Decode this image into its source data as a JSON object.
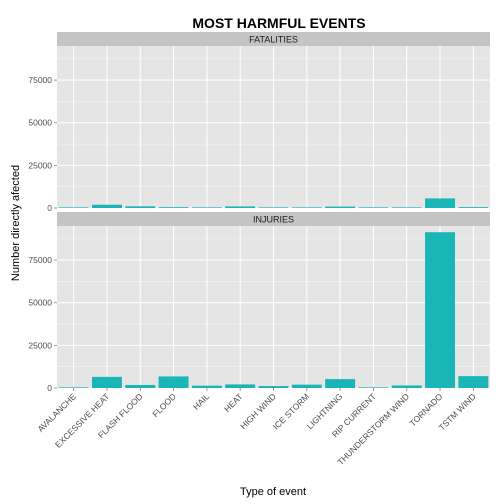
{
  "chart_data": {
    "type": "bar",
    "title": "MOST HARMFUL EVENTS",
    "xlabel": "Type of event",
    "ylabel": "Number directly afected",
    "ylim": [
      0,
      95000
    ],
    "yticks": [
      0,
      25000,
      50000,
      75000
    ],
    "ytick_labels": [
      "0",
      "25000",
      "50000",
      "75000"
    ],
    "grid": true,
    "bar_color": "#1ab5b7",
    "panel_background": "#e5e5e5",
    "strip_background": "#c4c4c4",
    "categories": [
      "AVALANCHE",
      "EXCESSIVE HEAT",
      "FLASH FLOOD",
      "FLOOD",
      "HAIL",
      "HEAT",
      "HIGH WIND",
      "ICE STORM",
      "LIGHTNING",
      "RIP CURRENT",
      "THUNDERSTORM WIND",
      "TORNADO",
      "TSTM WIND"
    ],
    "series": [
      {
        "name": "FATALITIES",
        "values": [
          224,
          1903,
          978,
          470,
          15,
          937,
          248,
          89,
          816,
          368,
          133,
          5633,
          504
        ]
      },
      {
        "name": "INJURIES",
        "values": [
          170,
          6525,
          1777,
          6789,
          1361,
          2100,
          1137,
          1975,
          5230,
          232,
          1488,
          91346,
          6957
        ]
      }
    ]
  }
}
